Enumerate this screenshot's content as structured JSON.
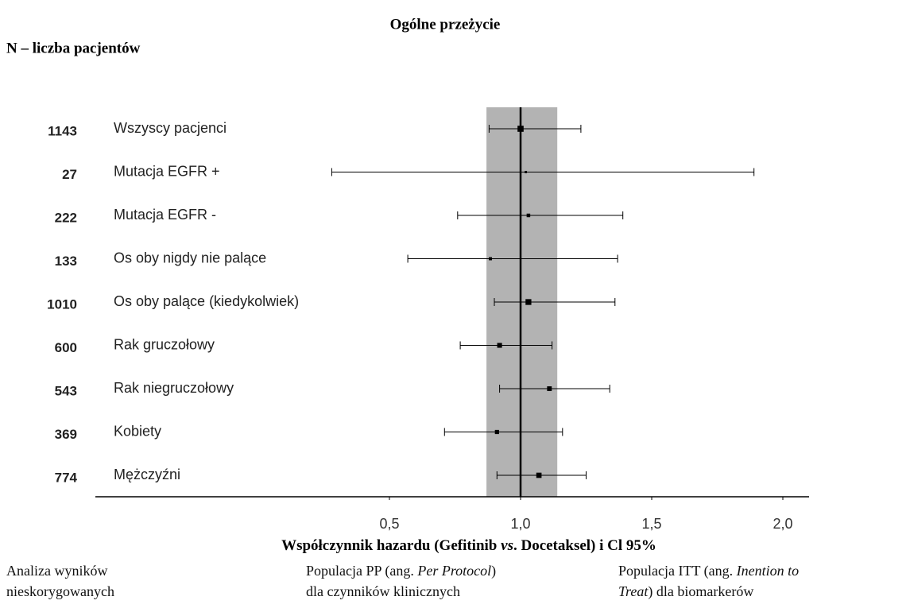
{
  "chart_data": {
    "type": "forest",
    "title": "Ogólne przeżycie",
    "subtitle": "N – liczba pacjentów",
    "xlabel": [
      {
        "text": "Współczynnik hazardu (Gefitinib "
      },
      {
        "text": "vs",
        "italic": true
      },
      {
        "text": ". Docetaksel) i Cl 95%"
      }
    ],
    "categories": [
      "Wszyscy pacjenci",
      "Mutacja EGFR +",
      "Mutacja EGFR -",
      "Os oby nigdy nie palące",
      "Os oby palące (kiedykolwiek)",
      "Rak gruczołowy",
      "Rak niegruczołowy",
      "Kobiety",
      "Mężczyźni"
    ],
    "n": [
      1143,
      27,
      222,
      133,
      1010,
      600,
      543,
      369,
      774
    ],
    "values": [
      1.0,
      1.02,
      1.03,
      0.885,
      1.03,
      0.92,
      1.11,
      0.91,
      1.07
    ],
    "ci_lower": [
      0.88,
      0.28,
      0.76,
      0.57,
      0.9,
      0.77,
      0.92,
      0.71,
      0.91
    ],
    "ci_upper": [
      1.23,
      1.89,
      1.39,
      1.37,
      1.36,
      1.12,
      1.34,
      1.16,
      1.25
    ],
    "color": "#000000",
    "shaded_region": [
      0.87,
      1.14
    ],
    "shaded_color": "#b3b3b3",
    "reference_line": 1,
    "xlim": [
      0.3,
      2.1
    ],
    "xticks": [
      {
        "value": 0.5,
        "label": "0,5"
      },
      {
        "value": 1.0,
        "label": "1,0"
      },
      {
        "value": 1.5,
        "label": "1,5"
      },
      {
        "value": 2.0,
        "label": "2,0"
      }
    ]
  },
  "footer": [
    [
      [
        {
          "text": "Analiza wyników"
        }
      ],
      [
        {
          "text": "nieskorygowanych"
        }
      ]
    ],
    [
      [
        {
          "text": "Populacja PP (ang. "
        },
        {
          "text": "Per Protocol",
          "italic": true
        },
        {
          "text": ")"
        }
      ],
      [
        {
          "text": "dla czynników klinicznych"
        }
      ]
    ],
    [
      [
        {
          "text": "Populacja ITT (ang. "
        },
        {
          "text": "Inention to",
          "italic": true
        }
      ],
      [
        {
          "text": "Treat",
          "italic": true
        },
        {
          "text": ") dla biomarkerów"
        }
      ]
    ]
  ]
}
